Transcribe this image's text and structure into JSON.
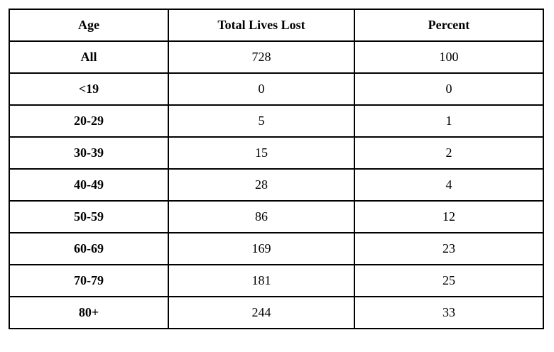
{
  "chart_data": {
    "type": "table",
    "title": "",
    "columns": [
      "Age",
      "Total Lives Lost",
      "Percent"
    ],
    "rows": [
      {
        "age": "All",
        "total": "728",
        "percent": "100"
      },
      {
        "age": "<19",
        "total": "0",
        "percent": "0"
      },
      {
        "age": "20-29",
        "total": "5",
        "percent": "1"
      },
      {
        "age": "30-39",
        "total": "15",
        "percent": "2"
      },
      {
        "age": "40-49",
        "total": "28",
        "percent": "4"
      },
      {
        "age": "50-59",
        "total": "86",
        "percent": "12"
      },
      {
        "age": "60-69",
        "total": "169",
        "percent": "23"
      },
      {
        "age": "70-79",
        "total": "181",
        "percent": "25"
      },
      {
        "age": "80+",
        "total": "244",
        "percent": "33"
      }
    ],
    "layout": {
      "border_color": "#000000",
      "background_color": "#ffffff",
      "grid": "all-borders"
    }
  }
}
